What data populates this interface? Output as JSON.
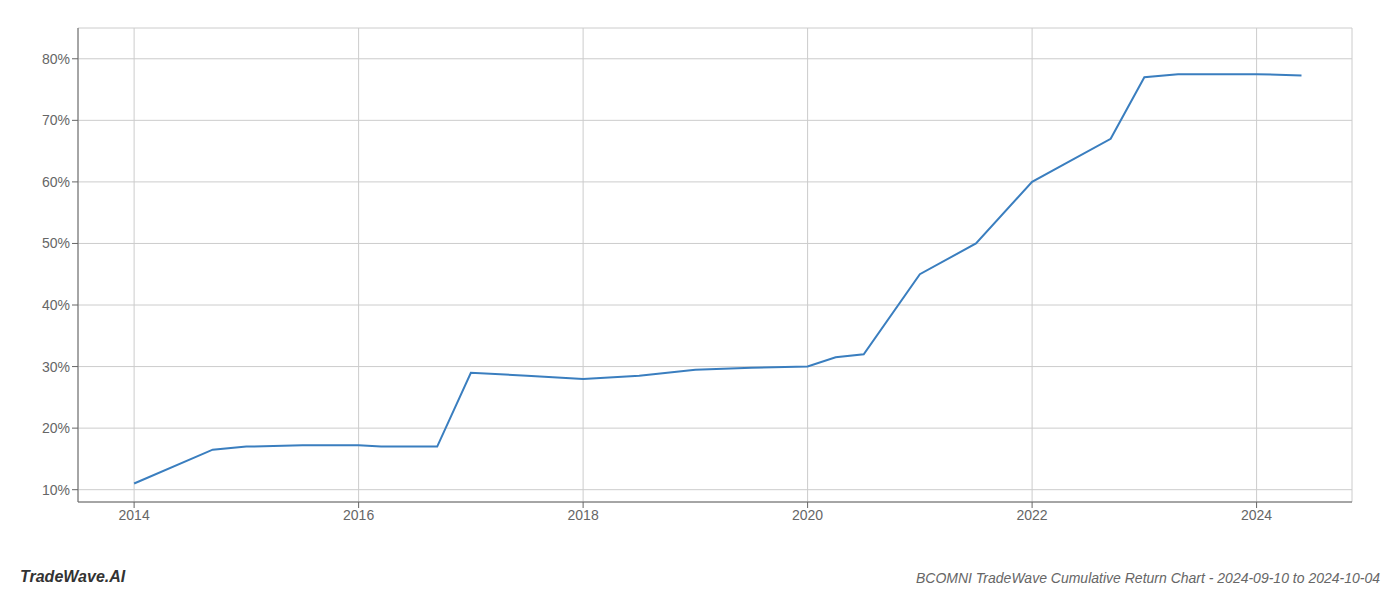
{
  "chart_data": {
    "type": "line",
    "title": "BCOMNI TradeWave Cumulative Return Chart - 2024-09-10 to 2024-10-04",
    "annotations": [
      "TradeWave.AI"
    ],
    "x": [
      2014.0,
      2014.7,
      2015.0,
      2015.5,
      2016.0,
      2016.2,
      2016.7,
      2017.0,
      2017.5,
      2018.0,
      2018.5,
      2019.0,
      2019.5,
      2020.0,
      2020.25,
      2020.5,
      2021.0,
      2021.5,
      2022.0,
      2022.3,
      2022.7,
      2023.0,
      2023.3,
      2023.7,
      2024.0,
      2024.4
    ],
    "values": [
      11.0,
      16.5,
      17.0,
      17.2,
      17.2,
      17.0,
      17.0,
      29.0,
      28.5,
      28.0,
      28.5,
      29.5,
      29.8,
      30.0,
      31.5,
      32.0,
      45.0,
      50.0,
      60.0,
      63.0,
      67.0,
      77.0,
      77.5,
      77.5,
      77.5,
      77.3
    ],
    "color": "#3a7ebf",
    "xlim": [
      2013.5,
      2024.85
    ],
    "ylim": [
      8,
      85
    ],
    "xticks": [
      2014,
      2016,
      2018,
      2020,
      2022,
      2024
    ],
    "yticks": [
      {
        "value": 10,
        "label": "10%"
      },
      {
        "value": 20,
        "label": "20%"
      },
      {
        "value": 30,
        "label": "30%"
      },
      {
        "value": 40,
        "label": "40%"
      },
      {
        "value": 50,
        "label": "50%"
      },
      {
        "value": 60,
        "label": "60%"
      },
      {
        "value": 70,
        "label": "70%"
      },
      {
        "value": 80,
        "label": "80%"
      }
    ],
    "grid": true
  }
}
